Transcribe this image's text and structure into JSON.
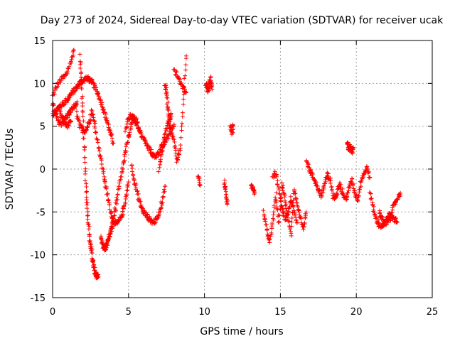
{
  "chart_data": {
    "type": "scatter",
    "title": "Day 273 of 2024, Sidereal Day-to-day VTEC variation (SDTVAR) for receiver ucak",
    "xlabel": "GPS time / hours",
    "ylabel": "SDTVAR / TECUs",
    "xlim": [
      0,
      25
    ],
    "ylim": [
      -15,
      15
    ],
    "xticks": [
      "0",
      "5",
      "10",
      "15",
      "20",
      "25"
    ],
    "yticks": [
      "15",
      "10",
      "5",
      "0",
      "-5",
      "-10",
      "-15"
    ],
    "grid": true,
    "marker": "+",
    "color": "#ff0000",
    "segments": [
      {
        "x": [
          0.0,
          0.3,
          0.6,
          0.9,
          1.2,
          1.4
        ],
        "y": [
          8.5,
          9.8,
          10.5,
          11.0,
          12.5,
          13.9
        ]
      },
      {
        "x": [
          0.0,
          0.2,
          0.4,
          0.6,
          0.8,
          1.0,
          1.2,
          1.4,
          1.6,
          1.8,
          2.0,
          2.2,
          2.4,
          2.6,
          2.8,
          3.0,
          3.2,
          3.4,
          3.6,
          3.8,
          4.0
        ],
        "y": [
          6.3,
          6.8,
          7.2,
          7.5,
          7.8,
          8.2,
          8.7,
          9.1,
          9.6,
          10.1,
          10.3,
          10.6,
          10.5,
          10.1,
          9.5,
          8.8,
          7.8,
          6.7,
          5.5,
          4.2,
          3.0
        ]
      },
      {
        "x": [
          0.0,
          0.2,
          0.4,
          0.6,
          0.8,
          1.0,
          1.2,
          1.4,
          1.6
        ],
        "y": [
          7.8,
          6.4,
          5.5,
          5.3,
          5.8,
          6.3,
          6.8,
          7.3,
          7.6
        ]
      },
      {
        "x": [
          0.4,
          0.6,
          0.8,
          1.0,
          1.2
        ],
        "y": [
          7.0,
          6.0,
          5.4,
          5.0,
          5.6
        ]
      },
      {
        "x": [
          1.6,
          1.8,
          2.0,
          2.2,
          2.4,
          2.6,
          2.8,
          3.0,
          3.2,
          3.4,
          3.6,
          3.8,
          4.0,
          4.2,
          4.4,
          4.6,
          4.8,
          5.0
        ],
        "y": [
          6.5,
          5.0,
          4.5,
          4.5,
          5.5,
          6.8,
          5.0,
          3.0,
          1.0,
          -1.0,
          -3.0,
          -4.8,
          -5.9,
          -6.5,
          -6.0,
          -5.2,
          -3.5,
          -1.5
        ]
      },
      {
        "x": [
          1.8,
          1.9,
          2.0,
          2.1,
          2.2,
          2.3,
          2.4,
          2.5,
          2.6
        ],
        "y": [
          13.2,
          10.0,
          6.0,
          2.0,
          -2.0,
          -5.0,
          -7.5,
          -9.0,
          -9.8
        ]
      },
      {
        "x": [
          2.6,
          2.7,
          2.8,
          2.9,
          3.0
        ],
        "y": [
          -10.5,
          -11.2,
          -12.0,
          -12.6,
          -12.3
        ]
      },
      {
        "x": [
          3.2,
          3.3,
          3.4,
          3.5,
          3.6,
          3.7,
          3.8,
          3.9,
          4.0,
          4.2,
          4.4,
          4.6,
          4.8,
          5.0,
          5.2,
          5.4,
          5.6
        ],
        "y": [
          -8.0,
          -9.0,
          -9.3,
          -9.1,
          -8.5,
          -8.0,
          -7.5,
          -6.8,
          -5.9,
          -4.0,
          -2.0,
          0.0,
          2.0,
          3.8,
          5.2,
          6.0,
          5.5
        ]
      },
      {
        "x": [
          4.8,
          5.0,
          5.2,
          5.4,
          5.6,
          5.8,
          6.0,
          6.2,
          6.4,
          6.6,
          6.8,
          7.0,
          7.2,
          7.4,
          7.6,
          7.8,
          8.0
        ],
        "y": [
          4.5,
          5.8,
          6.3,
          5.8,
          5.0,
          4.2,
          3.5,
          2.8,
          2.2,
          1.6,
          1.5,
          2.0,
          2.6,
          3.2,
          3.8,
          4.5,
          5.2
        ]
      },
      {
        "x": [
          5.2,
          5.4,
          5.6,
          5.8,
          6.0,
          6.2,
          6.4,
          6.6,
          6.8,
          7.0,
          7.2,
          7.4
        ],
        "y": [
          0.5,
          -1.5,
          -3.0,
          -4.3,
          -5.0,
          -5.5,
          -5.9,
          -6.2,
          -6.0,
          -5.2,
          -3.8,
          -2.0
        ]
      },
      {
        "x": [
          7.0,
          7.2,
          7.4,
          7.6,
          7.8,
          8.0,
          8.2,
          8.4,
          8.6,
          8.8
        ],
        "y": [
          0.0,
          2.0,
          4.0,
          5.5,
          4.6,
          3.0,
          1.0,
          2.5,
          8.0,
          13.2
        ]
      },
      {
        "x": [
          7.4,
          7.5,
          7.6,
          7.7,
          7.8
        ],
        "y": [
          10.0,
          9.0,
          7.0,
          5.5,
          6.5
        ]
      },
      {
        "x": [
          8.0,
          8.2,
          8.4,
          8.6,
          8.8
        ],
        "y": [
          11.5,
          11.0,
          10.2,
          9.5,
          9.0
        ]
      },
      {
        "x": [
          9.6,
          9.7
        ],
        "y": [
          -1.0,
          -1.8
        ]
      },
      {
        "x": [
          10.1,
          10.2,
          10.3,
          10.4,
          10.5
        ],
        "y": [
          10.0,
          9.0,
          9.6,
          10.6,
          9.3
        ]
      },
      {
        "x": [
          11.3,
          11.4,
          11.5
        ],
        "y": [
          -1.5,
          -2.8,
          -4.0
        ]
      },
      {
        "x": [
          11.7,
          11.8,
          11.9
        ],
        "y": [
          5.0,
          4.2,
          5.0
        ]
      },
      {
        "x": [
          13.1,
          13.2,
          13.3
        ],
        "y": [
          -2.0,
          -2.5,
          -2.8
        ]
      },
      {
        "x": [
          13.9,
          14.1,
          14.3,
          14.5,
          14.7,
          14.9,
          15.1,
          15.3,
          15.5,
          15.7,
          15.9,
          16.1,
          16.3,
          16.5,
          16.7
        ],
        "y": [
          -5.0,
          -7.0,
          -8.5,
          -6.0,
          -3.0,
          -6.5,
          -1.8,
          -3.5,
          -5.8,
          -7.5,
          -2.5,
          -4.0,
          -5.5,
          -7.0,
          -5.0
        ]
      },
      {
        "x": [
          14.5,
          14.7,
          14.9,
          15.1,
          15.3,
          15.5,
          15.7,
          15.9,
          16.1
        ],
        "y": [
          -1.0,
          -0.5,
          -2.5,
          -4.5,
          -6.0,
          -5.0,
          -3.5,
          -4.8,
          -6.2
        ]
      },
      {
        "x": [
          16.7,
          16.9,
          17.1,
          17.3,
          17.5,
          17.7,
          17.9,
          18.1,
          18.3,
          18.5,
          18.7,
          18.9,
          19.1,
          19.3,
          19.5,
          19.7,
          19.9,
          20.1,
          20.3,
          20.5,
          20.7,
          20.9
        ],
        "y": [
          1.2,
          0.0,
          -0.8,
          -1.5,
          -2.4,
          -3.2,
          -1.8,
          -0.6,
          -1.4,
          -3.5,
          -2.8,
          -1.6,
          -2.8,
          -3.6,
          -2.4,
          -1.2,
          -2.8,
          -3.6,
          -1.5,
          -0.5,
          0.2,
          -1.0
        ]
      },
      {
        "x": [
          19.4,
          19.5,
          19.6,
          19.7,
          19.8
        ],
        "y": [
          3.0,
          2.3,
          2.8,
          1.9,
          2.5
        ]
      },
      {
        "x": [
          20.9,
          21.1,
          21.3,
          21.5,
          21.7,
          21.9,
          22.1,
          22.3,
          22.5,
          22.7,
          22.9
        ],
        "y": [
          -2.5,
          -4.5,
          -5.8,
          -6.5,
          -6.8,
          -6.2,
          -5.5,
          -5.0,
          -4.2,
          -3.4,
          -2.8
        ]
      },
      {
        "x": [
          21.5,
          21.7,
          21.9,
          22.1,
          22.3,
          22.5,
          22.7
        ],
        "y": [
          -5.0,
          -5.8,
          -6.5,
          -6.0,
          -5.6,
          -5.8,
          -6.2
        ]
      }
    ]
  }
}
